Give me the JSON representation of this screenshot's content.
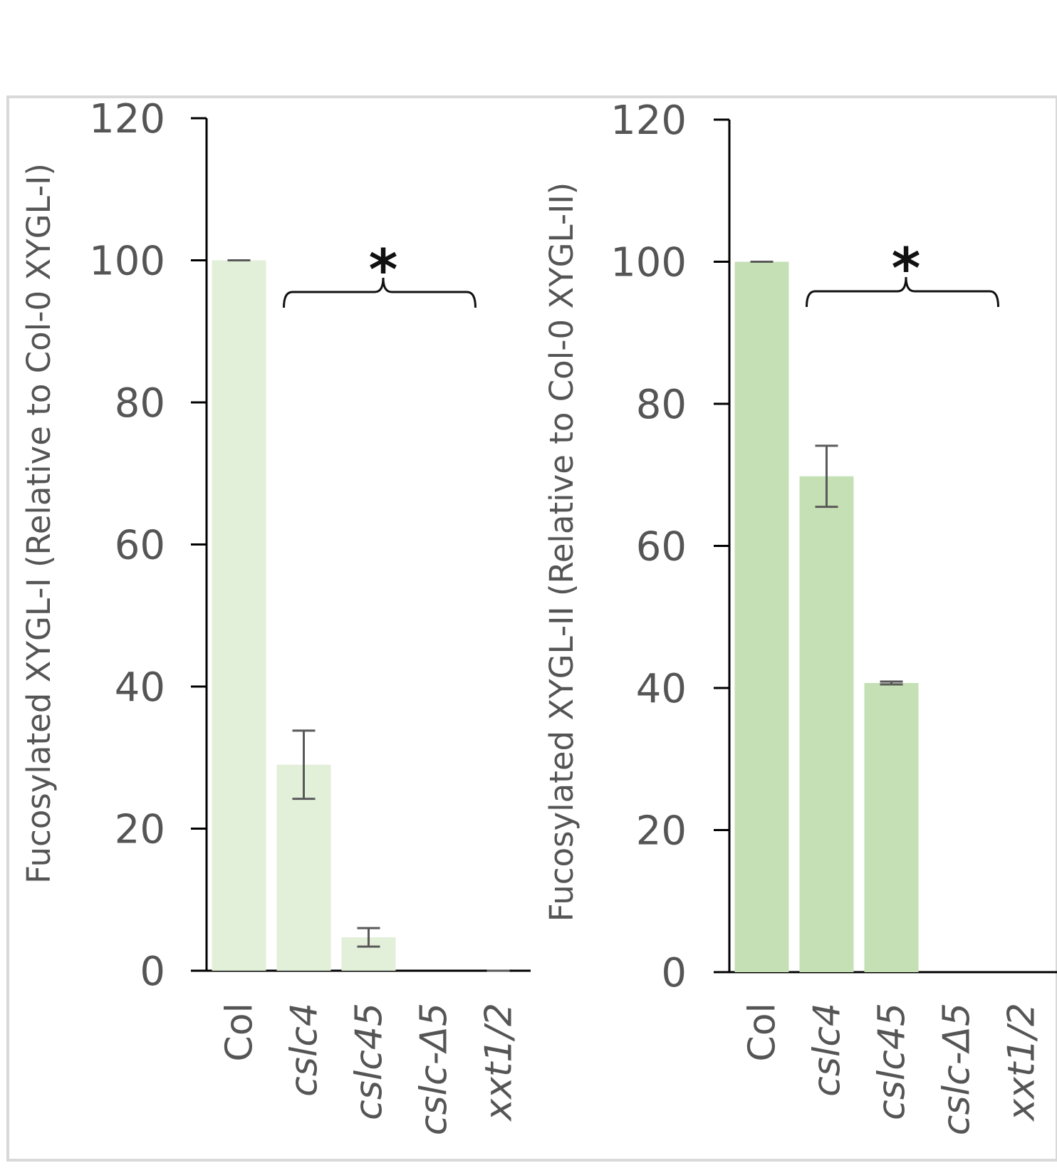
{
  "chart_data": [
    {
      "type": "bar",
      "ylabel": "Fucosylated XYGL-I (Relative to Col-0 XYGL-I)",
      "ylim": [
        0,
        120
      ],
      "yticks": [
        "0",
        "20",
        "40",
        "60",
        "80",
        "100",
        "120"
      ],
      "categories": [
        "Col",
        "cslc4",
        "cslc45",
        "cslc-Δ5",
        "xxt1/2"
      ],
      "series": [
        {
          "values": [
            100,
            29,
            4.7,
            0,
            0
          ],
          "errors": [
            0,
            4.8,
            1.3,
            0,
            0
          ]
        }
      ],
      "color": "#e2efd9",
      "annotation": {
        "text": "*",
        "spans": [
          "cslc4",
          "xxt1/2"
        ]
      }
    },
    {
      "type": "bar",
      "ylabel": "Fucosylated XYGL-II (Relative to Col-0 XYGL-II)",
      "ylim": [
        0,
        120
      ],
      "yticks": [
        "0",
        "20",
        "40",
        "60",
        "80",
        "100",
        "120"
      ],
      "categories": [
        "Col",
        "cslc4",
        "cslc45",
        "cslc-Δ5",
        "xxt1/2"
      ],
      "series": [
        {
          "values": [
            100,
            69.8,
            40.7,
            0,
            0
          ],
          "errors": [
            0,
            4.3,
            0.2,
            0,
            0
          ]
        }
      ],
      "color": "#c5e0b4",
      "annotation": {
        "text": "*",
        "spans": [
          "cslc4",
          "xxt1/2"
        ]
      }
    }
  ]
}
